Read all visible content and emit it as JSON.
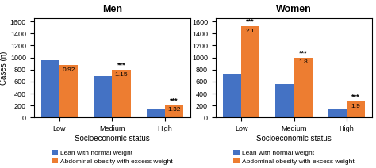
{
  "chart_data": [
    {
      "type": "bar",
      "title": "Men",
      "xlabel": "Socioeconomic status",
      "ylabel": "Cases (n)",
      "categories": [
        "Low",
        "Medium",
        "High"
      ],
      "series": [
        {
          "name": "Lean with normal weight",
          "color": "#4472C4",
          "values": [
            950,
            690,
            155
          ]
        },
        {
          "name": "Abdominal obesity with excess weight",
          "color": "#ED7D31",
          "values": [
            870,
            800,
            210
          ],
          "annotations": [
            "0.92",
            "1.15",
            "1.32"
          ],
          "significance": [
            null,
            "***",
            "***"
          ]
        }
      ],
      "ylim": [
        0,
        1650
      ],
      "yticks": [
        0,
        200,
        400,
        600,
        800,
        1000,
        1200,
        1400,
        1600
      ],
      "grid": false,
      "legend": "lower center"
    },
    {
      "type": "bar",
      "title": "Women",
      "xlabel": "Socioeconomic status",
      "categories": [
        "Low",
        "Medium",
        "High"
      ],
      "series": [
        {
          "name": "Lean with normal weight",
          "color": "#4472C4",
          "values": [
            720,
            560,
            140
          ]
        },
        {
          "name": "Abdominal obesity with excess weight",
          "color": "#ED7D31",
          "values": [
            1520,
            1000,
            270
          ],
          "annotations": [
            "2.1",
            "1.8",
            "1.9"
          ],
          "significance": [
            "***",
            "***",
            "***"
          ]
        }
      ],
      "ylim": [
        0,
        1650
      ],
      "yticks": [
        0,
        200,
        400,
        600,
        800,
        1000,
        1200,
        1400,
        1600
      ],
      "grid": false,
      "legend": "lower center"
    }
  ]
}
